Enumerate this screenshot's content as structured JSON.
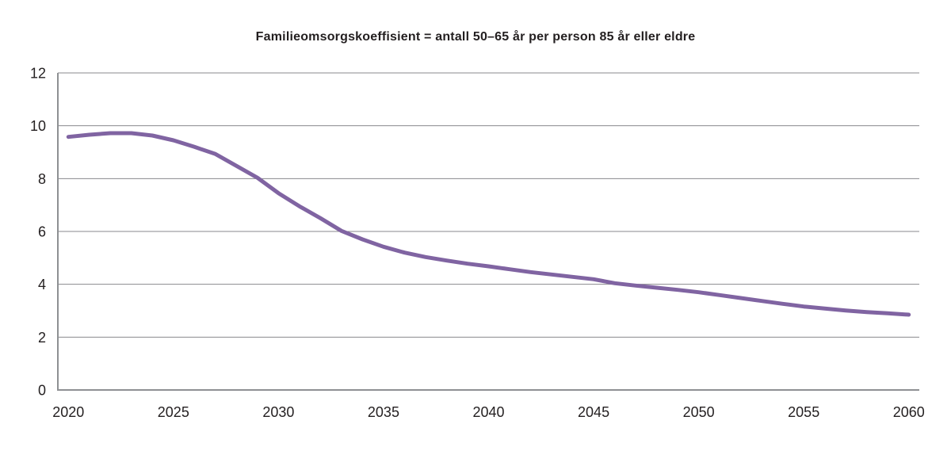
{
  "chart_data": {
    "type": "line",
    "title": "Familieomsorgskoeffisient = antall 50–65 år per person 85 år eller eldre",
    "x": [
      2020,
      2021,
      2022,
      2023,
      2024,
      2025,
      2026,
      2027,
      2028,
      2029,
      2030,
      2031,
      2032,
      2033,
      2034,
      2035,
      2036,
      2037,
      2038,
      2039,
      2040,
      2041,
      2042,
      2043,
      2044,
      2045,
      2046,
      2047,
      2048,
      2049,
      2050,
      2051,
      2052,
      2053,
      2054,
      2055,
      2056,
      2057,
      2058,
      2059,
      2060
    ],
    "values": [
      9.58,
      9.66,
      9.72,
      9.72,
      9.63,
      9.45,
      9.2,
      8.93,
      8.48,
      8.03,
      7.45,
      6.95,
      6.5,
      6.02,
      5.7,
      5.42,
      5.2,
      5.03,
      4.9,
      4.78,
      4.68,
      4.57,
      4.46,
      4.37,
      4.28,
      4.19,
      4.04,
      3.95,
      3.87,
      3.79,
      3.7,
      3.59,
      3.48,
      3.37,
      3.26,
      3.16,
      3.08,
      3.01,
      2.95,
      2.9,
      2.85
    ],
    "ylim": [
      0,
      12
    ],
    "yticks": [
      0,
      2,
      4,
      6,
      8,
      10,
      12
    ],
    "xticks": [
      2020,
      2025,
      2030,
      2035,
      2040,
      2045,
      2050,
      2055,
      2060
    ],
    "xlabel": "",
    "ylabel": "",
    "grid": "horizontal",
    "legend": "none",
    "colors": {
      "line": "#8064A2",
      "grid": "#8a8a8d",
      "axis": "#8e9093",
      "text": "#231f20"
    }
  }
}
